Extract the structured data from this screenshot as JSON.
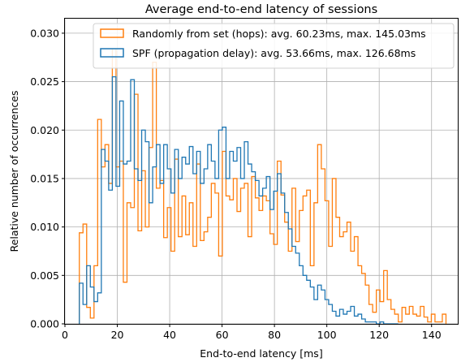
{
  "chart_data": {
    "type": "histogram",
    "title": "Average end-to-end latency of sessions",
    "xlabel": "End-to-end latency [ms]",
    "ylabel": "Relative number of occurrences",
    "xlim": [
      0,
      150
    ],
    "ylim": [
      0,
      0.0315
    ],
    "xticks": [
      0,
      20,
      40,
      60,
      80,
      100,
      120,
      140
    ],
    "yticks": [
      0.0,
      0.005,
      0.01,
      0.015,
      0.02,
      0.025,
      0.03
    ],
    "ytick_labels": [
      "0.000",
      "0.005",
      "0.010",
      "0.015",
      "0.020",
      "0.025",
      "0.030"
    ],
    "grid": true,
    "legend_position": "top-right",
    "series": [
      {
        "name": "Randomly from set (hops): avg. 60.23ms, max. 145.03ms",
        "color": "#ff7f0e",
        "edges": [
          5.5,
          6.9,
          8.3,
          9.7,
          11.1,
          12.5,
          13.9,
          15.3,
          16.7,
          18.1,
          19.5,
          20.9,
          22.3,
          23.7,
          25.1,
          26.5,
          27.9,
          29.3,
          30.7,
          32.1,
          33.5,
          34.9,
          36.3,
          37.7,
          39.1,
          40.5,
          41.9,
          43.3,
          44.7,
          46.1,
          47.5,
          48.9,
          50.3,
          51.7,
          53.1,
          54.5,
          55.9,
          57.3,
          58.7,
          60.1,
          61.5,
          62.9,
          64.3,
          65.7,
          67.1,
          68.5,
          69.9,
          71.3,
          72.7,
          74.1,
          75.5,
          76.9,
          78.3,
          79.7,
          81.1,
          82.5,
          83.9,
          85.3,
          86.7,
          88.1,
          89.5,
          90.9,
          92.3,
          93.7,
          95.1,
          96.5,
          97.9,
          99.3,
          100.7,
          102.1,
          103.5,
          104.9,
          106.3,
          107.7,
          109.1,
          110.5,
          111.9,
          113.3,
          114.7,
          116.1,
          117.5,
          118.9,
          120.3,
          121.7,
          123.1,
          124.5,
          125.9,
          127.3,
          128.7,
          130.1,
          131.5,
          132.9,
          134.3,
          135.7,
          137.1,
          138.5,
          139.9,
          141.3,
          142.7,
          144.1,
          145.5
        ],
        "values": [
          0.0094,
          0.0103,
          0.0017,
          0.0006,
          0.006,
          0.0211,
          0.0162,
          0.0185,
          0.0145,
          0.0284,
          0.0162,
          0.0168,
          0.0043,
          0.0125,
          0.012,
          0.0237,
          0.0096,
          0.0158,
          0.01,
          0.0182,
          0.027,
          0.014,
          0.0148,
          0.0089,
          0.012,
          0.0075,
          0.017,
          0.009,
          0.0132,
          0.0092,
          0.0125,
          0.008,
          0.0165,
          0.0086,
          0.0095,
          0.011,
          0.0145,
          0.0135,
          0.007,
          0.0178,
          0.0132,
          0.0128,
          0.015,
          0.0116,
          0.014,
          0.0145,
          0.009,
          0.0152,
          0.013,
          0.0117,
          0.0132,
          0.0127,
          0.0093,
          0.0082,
          0.0168,
          0.0133,
          0.0105,
          0.0075,
          0.014,
          0.0085,
          0.0117,
          0.0132,
          0.0138,
          0.006,
          0.0125,
          0.0185,
          0.016,
          0.0127,
          0.008,
          0.015,
          0.011,
          0.009,
          0.0095,
          0.0105,
          0.0075,
          0.009,
          0.006,
          0.0052,
          0.004,
          0.002,
          0.0012,
          0.0035,
          0.0023,
          0.0055,
          0.0025,
          0.0015,
          0.001,
          0.0002,
          0.0017,
          0.001,
          0.0018,
          0.001,
          0.0008,
          0.0018,
          0.0007,
          0.0002,
          0.001,
          0.0002,
          0.0002,
          0.001
        ]
      },
      {
        "name": "SPF (propagation delay): avg. 53.66ms, max. 126.68ms",
        "color": "#1f77b4",
        "edges": [
          5.5,
          6.9,
          8.3,
          9.7,
          11.1,
          12.5,
          13.9,
          15.3,
          16.7,
          18.1,
          19.5,
          20.9,
          22.3,
          23.7,
          25.1,
          26.5,
          27.9,
          29.3,
          30.7,
          32.1,
          33.5,
          34.9,
          36.3,
          37.7,
          39.1,
          40.5,
          41.9,
          43.3,
          44.7,
          46.1,
          47.5,
          48.9,
          50.3,
          51.7,
          53.1,
          54.5,
          55.9,
          57.3,
          58.7,
          60.1,
          61.5,
          62.9,
          64.3,
          65.7,
          67.1,
          68.5,
          69.9,
          71.3,
          72.7,
          74.1,
          75.5,
          76.9,
          78.3,
          79.7,
          81.1,
          82.5,
          83.9,
          85.3,
          86.7,
          88.1,
          89.5,
          90.9,
          92.3,
          93.7,
          95.1,
          96.5,
          97.9,
          99.3,
          100.7,
          102.1,
          103.5,
          104.9,
          106.3,
          107.7,
          109.1,
          110.5,
          111.9,
          113.3,
          114.7,
          116.1,
          117.5,
          118.9,
          120.3,
          121.7,
          123.1,
          124.5,
          125.9,
          127.3
        ],
        "values": [
          0.0042,
          0.002,
          0.006,
          0.0038,
          0.0023,
          0.0032,
          0.018,
          0.0168,
          0.0138,
          0.0255,
          0.0142,
          0.023,
          0.0165,
          0.0168,
          0.0252,
          0.016,
          0.0148,
          0.02,
          0.0188,
          0.0125,
          0.0162,
          0.0185,
          0.0145,
          0.0185,
          0.016,
          0.0135,
          0.018,
          0.015,
          0.0172,
          0.0165,
          0.0183,
          0.0155,
          0.0178,
          0.0145,
          0.016,
          0.0185,
          0.0168,
          0.015,
          0.02,
          0.0203,
          0.015,
          0.0178,
          0.0168,
          0.0182,
          0.015,
          0.0188,
          0.0165,
          0.0157,
          0.0148,
          0.0132,
          0.014,
          0.0152,
          0.0118,
          0.0137,
          0.0155,
          0.0135,
          0.0115,
          0.0098,
          0.008,
          0.0073,
          0.006,
          0.005,
          0.0045,
          0.0038,
          0.0025,
          0.004,
          0.0035,
          0.0025,
          0.002,
          0.0013,
          0.0008,
          0.0015,
          0.001,
          0.0013,
          0.0018,
          0.0008,
          0.001,
          0.0005,
          0.0002,
          0.0002,
          0.0002,
          0.0,
          0.0002,
          0.0,
          0.0,
          0.0,
          0.0
        ]
      }
    ]
  }
}
